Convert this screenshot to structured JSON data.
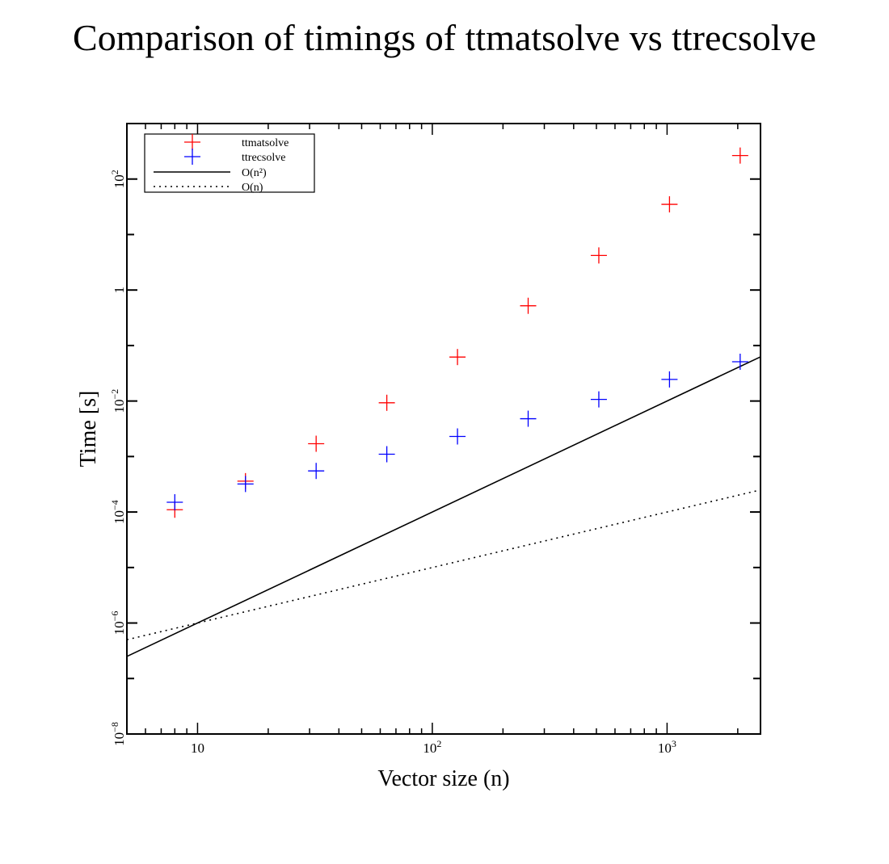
{
  "chart_data": {
    "type": "scatter",
    "title": "Comparison of timings of ttmatsolve vs ttrecsolve",
    "xlabel": "Vector size (n)",
    "ylabel": "Time [s]",
    "xscale": "log",
    "yscale": "log",
    "xlim": [
      5,
      2500
    ],
    "ylim": [
      1e-08,
      1000
    ],
    "grid": false,
    "legend_position": "top-left",
    "x_ticks": [
      {
        "value": 10,
        "base": "10",
        "exp": ""
      },
      {
        "value": 100,
        "base": "10",
        "exp": "2"
      },
      {
        "value": 1000,
        "base": "10",
        "exp": "3"
      }
    ],
    "y_ticks": [
      {
        "value": 1e-08,
        "base": "10",
        "exp": "−8"
      },
      {
        "value": 1e-06,
        "base": "10",
        "exp": "−6"
      },
      {
        "value": 0.0001,
        "base": "10",
        "exp": "−4"
      },
      {
        "value": 0.01,
        "base": "10",
        "exp": "−2"
      },
      {
        "value": 1,
        "base": "1",
        "exp": ""
      },
      {
        "value": 100,
        "base": "10",
        "exp": "2"
      }
    ],
    "series": [
      {
        "name": "ttmatsolve",
        "style": "marker",
        "color": "#ff0000",
        "x": [
          8,
          16,
          32,
          64,
          128,
          256,
          512,
          1024,
          2048
        ],
        "y": [
          0.00011,
          0.00036,
          0.0017,
          0.0093,
          0.062,
          0.52,
          4.2,
          35,
          265
        ]
      },
      {
        "name": "ttrecsolve",
        "style": "marker",
        "color": "#0000ff",
        "x": [
          8,
          16,
          32,
          64,
          128,
          256,
          512,
          1024,
          2048
        ],
        "y": [
          0.00015,
          0.00032,
          0.00055,
          0.0011,
          0.0023,
          0.0048,
          0.0107,
          0.0245,
          0.051
        ]
      },
      {
        "name": "O(n²)",
        "style": "solid",
        "color": "#000000",
        "x": [
          5,
          2500
        ],
        "y": [
          2.5e-07,
          0.0625
        ]
      },
      {
        "name": "O(n)",
        "style": "dotted",
        "color": "#000000",
        "x": [
          5,
          2500
        ],
        "y": [
          5e-07,
          0.00025
        ]
      }
    ]
  }
}
